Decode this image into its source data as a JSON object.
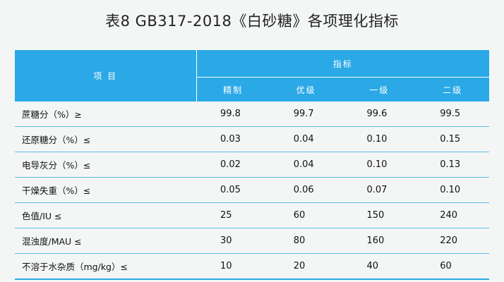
{
  "title": "表8   GB317-2018《白砂糖》各项理化指标",
  "header": {
    "item": "项 目",
    "group": "指标",
    "grades": [
      "精制",
      "优级",
      "一级",
      "二级"
    ]
  },
  "rows": [
    {
      "name": "蔗糖分（%）≥",
      "values": [
        "99.8",
        "99.7",
        "99.6",
        "99.5"
      ]
    },
    {
      "name": "还原糖分（%）≤",
      "values": [
        "0.03",
        "0.04",
        "0.10",
        "0.15"
      ]
    },
    {
      "name": "电导灰分（%）≤",
      "values": [
        "0.02",
        "0.04",
        "0.10",
        "0.13"
      ]
    },
    {
      "name": "干燥失重（%）≤",
      "values": [
        "0.05",
        "0.06",
        "0.07",
        "0.10"
      ]
    },
    {
      "name": "色值/IU  ≤",
      "values": [
        "25",
        "60",
        "150",
        "240"
      ]
    },
    {
      "name": "混浊度/MAU  ≤",
      "values": [
        "30",
        "80",
        "160",
        "220"
      ]
    },
    {
      "name": "不溶于水杂质（mg/kg）≤",
      "values": [
        "10",
        "20",
        "40",
        "60"
      ]
    }
  ]
}
